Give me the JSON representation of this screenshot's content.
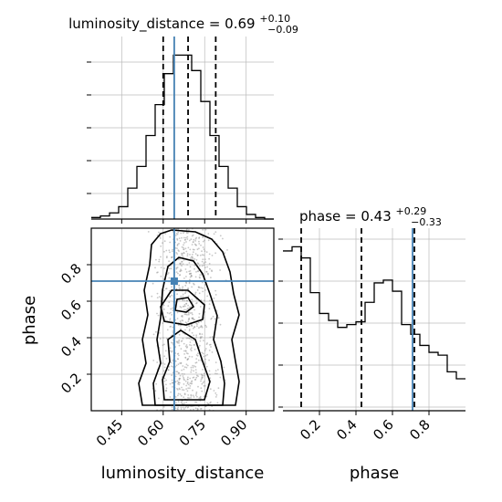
{
  "chart_data": {
    "type": "corner",
    "truth_color": "#4682b4",
    "parameters": [
      "luminosity_distance",
      "phase"
    ],
    "truths": {
      "luminosity_distance": 0.64,
      "phase": 0.71
    },
    "titles": {
      "luminosity_distance": {
        "main": "luminosity_distance = 0.69",
        "sup": "+0.10",
        "sub": "−0.09"
      },
      "phase": {
        "main": "phase = 0.43",
        "sup": "+0.29",
        "sub": "−0.33"
      }
    },
    "xlabels": [
      "luminosity_distance",
      "phase"
    ],
    "ylabel": "phase",
    "luminosity_distance_ticks": [
      "0.45",
      "0.60",
      "0.75",
      "0.90"
    ],
    "phase_ticks": [
      "0.2",
      "0.4",
      "0.6",
      "0.8"
    ],
    "hist_luminosity_distance": {
      "range": [
        0.34,
        1.0
      ],
      "quantiles": [
        0.6,
        0.69,
        0.79
      ],
      "counts": [
        0.5,
        1,
        2,
        4,
        10,
        17,
        27,
        37,
        47,
        53,
        53,
        48,
        38,
        27,
        17,
        10,
        4,
        1.5,
        0.5,
        0
      ]
    },
    "hist_phase": {
      "range": [
        0.0,
        1.0
      ],
      "quantiles": [
        0.1,
        0.43,
        0.72
      ],
      "counts": [
        115,
        118,
        110,
        85,
        70,
        65,
        60,
        62,
        64,
        78,
        92,
        94,
        86,
        62,
        55,
        47,
        42,
        40,
        28,
        23
      ]
    },
    "hist2d": {
      "x_range": [
        0.34,
        1.0
      ],
      "y_range": [
        0.0,
        1.0
      ],
      "density": [
        [
          0.05,
          0.1,
          0.12,
          0.1,
          0.05
        ],
        [
          0.1,
          0.25,
          0.3,
          0.22,
          0.1
        ],
        [
          0.1,
          0.3,
          0.45,
          0.32,
          0.12
        ],
        [
          0.08,
          0.25,
          0.35,
          0.25,
          0.1
        ],
        [
          0.05,
          0.18,
          0.25,
          0.18,
          0.08
        ],
        [
          0.05,
          0.2,
          0.4,
          0.3,
          0.1
        ],
        [
          0.1,
          0.3,
          0.7,
          0.5,
          0.15
        ],
        [
          0.1,
          0.25,
          0.45,
          0.3,
          0.1
        ],
        [
          0.05,
          0.12,
          0.15,
          0.12,
          0.05
        ],
        [
          0.03,
          0.06,
          0.08,
          0.06,
          0.03
        ]
      ]
    }
  }
}
